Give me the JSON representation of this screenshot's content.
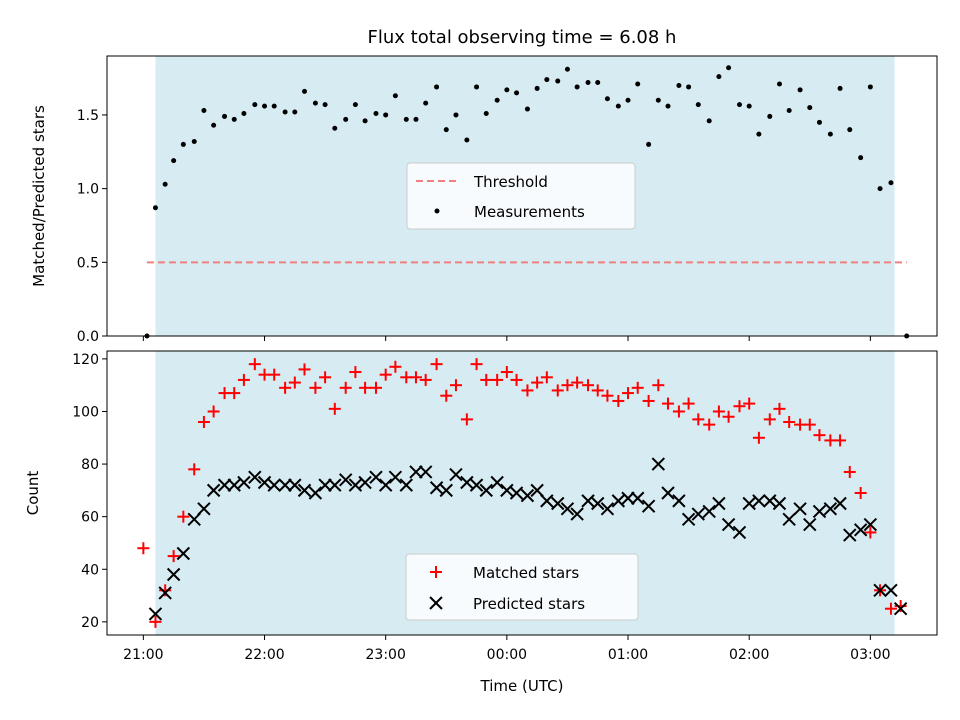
{
  "chart_data": {
    "type": "scatter",
    "title": "Flux total observing time = 6.08 h",
    "xlabel": "Time (UTC)",
    "x_ticks": [
      "21:00",
      "22:00",
      "23:00",
      "00:00",
      "01:00",
      "02:00",
      "03:00"
    ],
    "x_tick_offsets_h": [
      0,
      1,
      2,
      3,
      4,
      5,
      6
    ],
    "observing_window_h": [
      0.1,
      6.2
    ],
    "window_color": "#add8e6",
    "panels": [
      {
        "ylabel": "Matched/Predicted stars",
        "ylim": [
          0,
          1.9
        ],
        "yticks": [
          0.0,
          0.5,
          1.0,
          1.5
        ],
        "ytick_labels": [
          "0.0",
          "0.5",
          "1.0",
          "1.5"
        ],
        "threshold": {
          "name": "Threshold",
          "value": 0.5,
          "x_range": [
            0.03,
            6.3
          ],
          "color": "#f08080"
        },
        "series": [
          {
            "name": "Measurements",
            "color": "#000000",
            "marker": "dot",
            "points": [
              [
                0.03,
                0.0
              ],
              [
                0.1,
                0.87
              ],
              [
                0.18,
                1.03
              ],
              [
                0.25,
                1.19
              ],
              [
                0.33,
                1.3
              ],
              [
                0.42,
                1.32
              ],
              [
                0.5,
                1.53
              ],
              [
                0.58,
                1.43
              ],
              [
                0.67,
                1.49
              ],
              [
                0.75,
                1.47
              ],
              [
                0.83,
                1.51
              ],
              [
                0.92,
                1.57
              ],
              [
                1.0,
                1.56
              ],
              [
                1.08,
                1.56
              ],
              [
                1.17,
                1.52
              ],
              [
                1.25,
                1.52
              ],
              [
                1.33,
                1.66
              ],
              [
                1.42,
                1.58
              ],
              [
                1.5,
                1.57
              ],
              [
                1.58,
                1.41
              ],
              [
                1.67,
                1.47
              ],
              [
                1.75,
                1.57
              ],
              [
                1.83,
                1.46
              ],
              [
                1.92,
                1.51
              ],
              [
                2.0,
                1.5
              ],
              [
                2.08,
                1.63
              ],
              [
                2.17,
                1.47
              ],
              [
                2.25,
                1.47
              ],
              [
                2.33,
                1.58
              ],
              [
                2.42,
                1.69
              ],
              [
                2.5,
                1.4
              ],
              [
                2.58,
                1.5
              ],
              [
                2.67,
                1.33
              ],
              [
                2.75,
                1.69
              ],
              [
                2.83,
                1.51
              ],
              [
                2.92,
                1.6
              ],
              [
                3.0,
                1.67
              ],
              [
                3.08,
                1.65
              ],
              [
                3.17,
                1.54
              ],
              [
                3.25,
                1.68
              ],
              [
                3.33,
                1.74
              ],
              [
                3.42,
                1.73
              ],
              [
                3.5,
                1.81
              ],
              [
                3.58,
                1.69
              ],
              [
                3.67,
                1.72
              ],
              [
                3.75,
                1.72
              ],
              [
                3.83,
                1.61
              ],
              [
                3.92,
                1.56
              ],
              [
                4.0,
                1.6
              ],
              [
                4.08,
                1.71
              ],
              [
                4.17,
                1.3
              ],
              [
                4.25,
                1.6
              ],
              [
                4.33,
                1.56
              ],
              [
                4.42,
                1.7
              ],
              [
                4.5,
                1.69
              ],
              [
                4.58,
                1.57
              ],
              [
                4.67,
                1.46
              ],
              [
                4.75,
                1.76
              ],
              [
                4.83,
                1.82
              ],
              [
                4.92,
                1.57
              ],
              [
                5.0,
                1.56
              ],
              [
                5.08,
                1.37
              ],
              [
                5.17,
                1.49
              ],
              [
                5.25,
                1.71
              ],
              [
                5.33,
                1.53
              ],
              [
                5.42,
                1.67
              ],
              [
                5.5,
                1.55
              ],
              [
                5.58,
                1.45
              ],
              [
                5.67,
                1.37
              ],
              [
                5.75,
                1.68
              ],
              [
                5.83,
                1.4
              ],
              [
                5.92,
                1.21
              ],
              [
                6.0,
                1.69
              ],
              [
                6.08,
                1.0
              ],
              [
                6.17,
                1.04
              ],
              [
                6.3,
                0.0
              ]
            ]
          }
        ],
        "legend": {
          "placement": "center",
          "entries": [
            "Threshold",
            "Measurements"
          ]
        }
      },
      {
        "ylabel": "Count",
        "ylim": [
          15,
          123
        ],
        "yticks": [
          20,
          40,
          60,
          80,
          100,
          120
        ],
        "ytick_labels": [
          "20",
          "40",
          "60",
          "80",
          "100",
          "120"
        ],
        "series": [
          {
            "name": "Matched stars",
            "color": "#ff0000",
            "marker": "plus",
            "points": [
              [
                0.0,
                48
              ],
              [
                0.1,
                20
              ],
              [
                0.18,
                32
              ],
              [
                0.25,
                45
              ],
              [
                0.33,
                60
              ],
              [
                0.42,
                78
              ],
              [
                0.5,
                96
              ],
              [
                0.58,
                100
              ],
              [
                0.67,
                107
              ],
              [
                0.75,
                107
              ],
              [
                0.83,
                112
              ],
              [
                0.92,
                118
              ],
              [
                1.0,
                114
              ],
              [
                1.08,
                114
              ],
              [
                1.17,
                109
              ],
              [
                1.25,
                111
              ],
              [
                1.33,
                116
              ],
              [
                1.42,
                109
              ],
              [
                1.5,
                113
              ],
              [
                1.58,
                101
              ],
              [
                1.67,
                109
              ],
              [
                1.75,
                115
              ],
              [
                1.83,
                109
              ],
              [
                1.92,
                109
              ],
              [
                2.0,
                114
              ],
              [
                2.08,
                117
              ],
              [
                2.17,
                113
              ],
              [
                2.25,
                113
              ],
              [
                2.33,
                112
              ],
              [
                2.42,
                118
              ],
              [
                2.5,
                106
              ],
              [
                2.58,
                110
              ],
              [
                2.67,
                97
              ],
              [
                2.75,
                118
              ],
              [
                2.83,
                112
              ],
              [
                2.92,
                112
              ],
              [
                3.0,
                115
              ],
              [
                3.08,
                112
              ],
              [
                3.17,
                108
              ],
              [
                3.25,
                111
              ],
              [
                3.33,
                113
              ],
              [
                3.42,
                108
              ],
              [
                3.5,
                110
              ],
              [
                3.58,
                111
              ],
              [
                3.67,
                110
              ],
              [
                3.75,
                108
              ],
              [
                3.83,
                106
              ],
              [
                3.92,
                104
              ],
              [
                4.0,
                107
              ],
              [
                4.08,
                109
              ],
              [
                4.17,
                104
              ],
              [
                4.25,
                110
              ],
              [
                4.33,
                103
              ],
              [
                4.42,
                100
              ],
              [
                4.5,
                103
              ],
              [
                4.58,
                97
              ],
              [
                4.67,
                95
              ],
              [
                4.75,
                100
              ],
              [
                4.83,
                98
              ],
              [
                4.92,
                102
              ],
              [
                5.0,
                103
              ],
              [
                5.08,
                90
              ],
              [
                5.17,
                97
              ],
              [
                5.25,
                101
              ],
              [
                5.33,
                96
              ],
              [
                5.42,
                95
              ],
              [
                5.5,
                95
              ],
              [
                5.58,
                91
              ],
              [
                5.67,
                89
              ],
              [
                5.75,
                89
              ],
              [
                5.83,
                77
              ],
              [
                5.92,
                69
              ],
              [
                6.0,
                54
              ],
              [
                6.08,
                32
              ],
              [
                6.17,
                25
              ],
              [
                6.25,
                26
              ]
            ]
          },
          {
            "name": "Predicted stars",
            "color": "#000000",
            "marker": "x",
            "points": [
              [
                0.1,
                23
              ],
              [
                0.18,
                31
              ],
              [
                0.25,
                38
              ],
              [
                0.33,
                46
              ],
              [
                0.42,
                59
              ],
              [
                0.5,
                63
              ],
              [
                0.58,
                70
              ],
              [
                0.67,
                72
              ],
              [
                0.75,
                72
              ],
              [
                0.83,
                73
              ],
              [
                0.92,
                75
              ],
              [
                1.0,
                73
              ],
              [
                1.08,
                72
              ],
              [
                1.17,
                72
              ],
              [
                1.25,
                72
              ],
              [
                1.33,
                70
              ],
              [
                1.42,
                69
              ],
              [
                1.5,
                72
              ],
              [
                1.58,
                72
              ],
              [
                1.67,
                74
              ],
              [
                1.75,
                72
              ],
              [
                1.83,
                73
              ],
              [
                1.92,
                75
              ],
              [
                2.0,
                72
              ],
              [
                2.08,
                75
              ],
              [
                2.17,
                72
              ],
              [
                2.25,
                77
              ],
              [
                2.33,
                77
              ],
              [
                2.42,
                71
              ],
              [
                2.5,
                70
              ],
              [
                2.58,
                76
              ],
              [
                2.67,
                73
              ],
              [
                2.75,
                72
              ],
              [
                2.83,
                70
              ],
              [
                2.92,
                73
              ],
              [
                3.0,
                70
              ],
              [
                3.08,
                69
              ],
              [
                3.17,
                68
              ],
              [
                3.25,
                70
              ],
              [
                3.33,
                66
              ],
              [
                3.42,
                65
              ],
              [
                3.5,
                63
              ],
              [
                3.58,
                61
              ],
              [
                3.67,
                66
              ],
              [
                3.75,
                65
              ],
              [
                3.83,
                63
              ],
              [
                3.92,
                66
              ],
              [
                4.0,
                67
              ],
              [
                4.08,
                67
              ],
              [
                4.17,
                64
              ],
              [
                4.25,
                80
              ],
              [
                4.33,
                69
              ],
              [
                4.42,
                66
              ],
              [
                4.5,
                59
              ],
              [
                4.58,
                61
              ],
              [
                4.67,
                62
              ],
              [
                4.75,
                65
              ],
              [
                4.83,
                57
              ],
              [
                4.92,
                54
              ],
              [
                5.0,
                65
              ],
              [
                5.08,
                66
              ],
              [
                5.17,
                66
              ],
              [
                5.25,
                65
              ],
              [
                5.33,
                59
              ],
              [
                5.42,
                63
              ],
              [
                5.5,
                57
              ],
              [
                5.58,
                62
              ],
              [
                5.67,
                63
              ],
              [
                5.75,
                65
              ],
              [
                5.83,
                53
              ],
              [
                5.92,
                55
              ],
              [
                6.0,
                57
              ],
              [
                6.08,
                32
              ],
              [
                6.17,
                32
              ],
              [
                6.25,
                25
              ]
            ]
          }
        ],
        "legend": {
          "placement": "lower center",
          "entries": [
            "Matched stars",
            "Predicted stars"
          ]
        }
      }
    ]
  }
}
